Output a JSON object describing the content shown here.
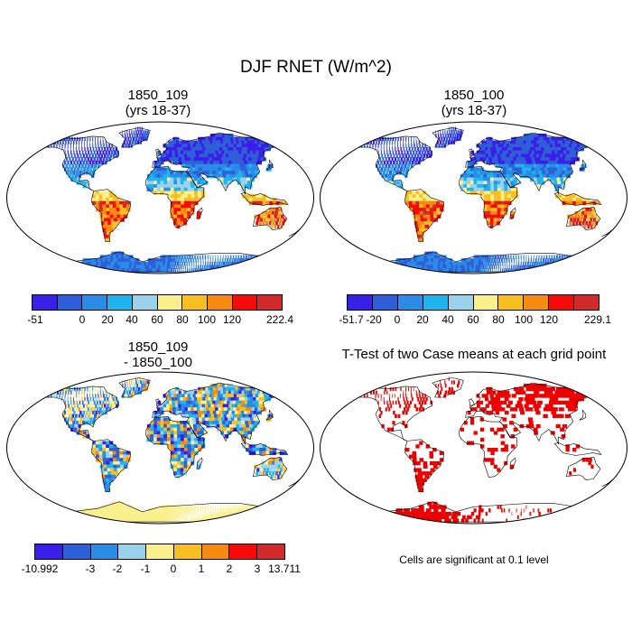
{
  "title": "DJF RNET (W/m^2)",
  "panels": {
    "p1": {
      "title_line1": "1850_109",
      "title_line2": "(yrs 18-37)"
    },
    "p2": {
      "title_line1": "1850_100",
      "title_line2": "(yrs 18-37)"
    },
    "p3": {
      "title_line1": "1850_109",
      "title_line2": "- 1850_100"
    },
    "p4": {
      "title_line1": "T-Test of two Case means at each grid point",
      "note": "Cells are significant at 0.1 level"
    }
  },
  "colorbars": {
    "cb1": {
      "labels": [
        "-51",
        "0",
        "20",
        "40",
        "60",
        "80",
        "100",
        "120",
        "222.4"
      ]
    },
    "cb2": {
      "labels": [
        "-51.7",
        "-20",
        "0",
        "20",
        "40",
        "60",
        "80",
        "100",
        "120",
        "229.1"
      ]
    },
    "cb3": {
      "labels": [
        "-10.992",
        "-3",
        "-2",
        "-1",
        "0",
        "1",
        "2",
        "3",
        "13.711"
      ]
    }
  },
  "colors": {
    "ramp": [
      "#3a1fe8",
      "#2f5fd8",
      "#2b8ce8",
      "#1fb4ee",
      "#9ad2ec",
      "#fbf08e",
      "#f7c020",
      "#f78a10",
      "#f70a0a",
      "#d02a2a"
    ],
    "significant": "#ee0000"
  }
}
